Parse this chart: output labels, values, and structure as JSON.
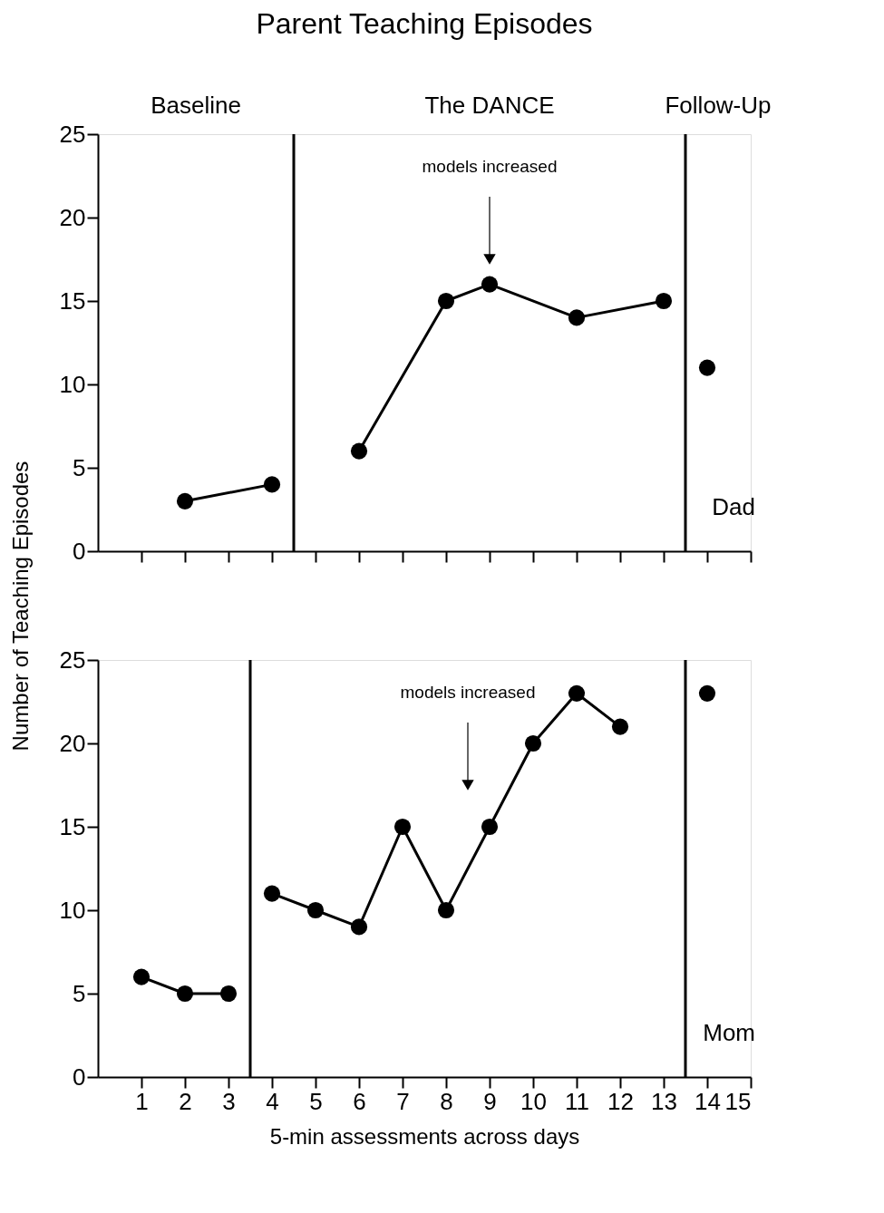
{
  "chart_data": [
    {
      "type": "line",
      "title": "Parent Teaching Episodes",
      "ylabel": "Number of Teaching Episodes",
      "xlim": [
        0,
        15
      ],
      "xticks": [
        1,
        2,
        3,
        4,
        5,
        6,
        7,
        8,
        9,
        10,
        11,
        12,
        13,
        14,
        15
      ],
      "ylim": [
        0,
        25
      ],
      "yticks": [
        0,
        5,
        10,
        15,
        20,
        25
      ],
      "tick_labels": "y",
      "grid": false,
      "marker": "circle",
      "line_style": "solid",
      "series": [
        {
          "color": "#000000",
          "x": [
            2,
            4
          ],
          "values": [
            3,
            4
          ]
        },
        {
          "color": "#000000",
          "x": [
            6,
            8,
            9,
            11,
            13
          ],
          "values": [
            6,
            15,
            16,
            14,
            15
          ]
        },
        {
          "color": "#000000",
          "x": [
            14
          ],
          "values": [
            11
          ]
        }
      ],
      "ref_lines": [
        {
          "axis": "x",
          "value": 4.5,
          "color": "#000000"
        },
        {
          "axis": "x",
          "value": 13.5,
          "color": "#000000"
        }
      ],
      "annotations": [
        "Baseline",
        "The DANCE",
        "Follow-Up",
        "models increased",
        "Dad"
      ]
    },
    {
      "type": "line",
      "xlabel": "5-min assessments across days",
      "xlim": [
        0,
        15
      ],
      "xticks": [
        1,
        2,
        3,
        4,
        5,
        6,
        7,
        8,
        9,
        10,
        11,
        12,
        13,
        14,
        15
      ],
      "ylim": [
        0,
        25
      ],
      "yticks": [
        0,
        5,
        10,
        15,
        20,
        25
      ],
      "grid": false,
      "marker": "circle",
      "line_style": "solid",
      "series": [
        {
          "color": "#000000",
          "x": [
            1,
            2,
            3
          ],
          "values": [
            6,
            5,
            5
          ]
        },
        {
          "color": "#000000",
          "x": [
            4,
            5,
            6,
            7,
            8,
            9,
            10,
            11,
            12
          ],
          "values": [
            11,
            10,
            9,
            15,
            10,
            15,
            20,
            23,
            21
          ]
        },
        {
          "color": "#000000",
          "x": [
            14
          ],
          "values": [
            23
          ]
        }
      ],
      "ref_lines": [
        {
          "axis": "x",
          "value": 3.5,
          "color": "#000000"
        },
        {
          "axis": "x",
          "value": 13.5,
          "color": "#000000"
        }
      ],
      "annotations": [
        "models increased",
        "Mom"
      ]
    }
  ]
}
